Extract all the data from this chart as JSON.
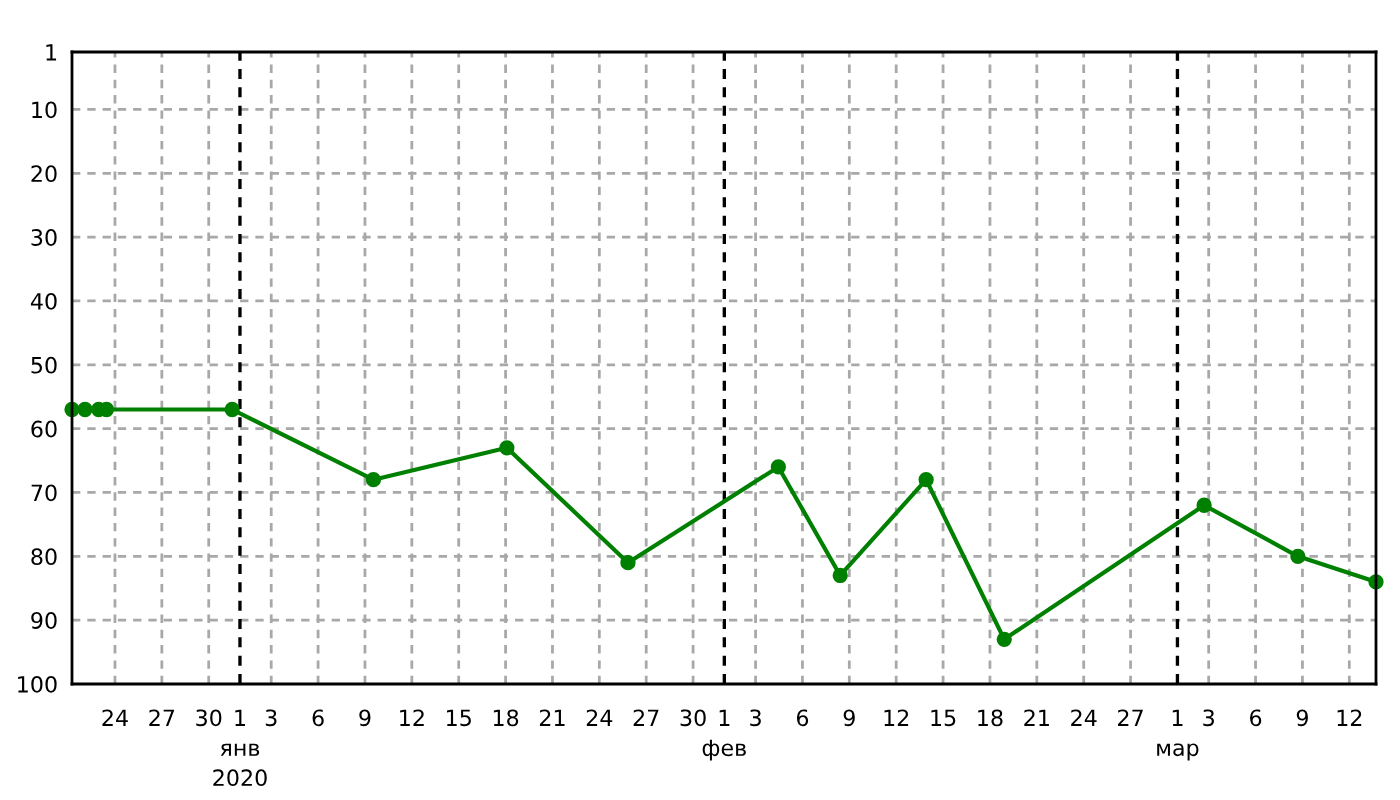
{
  "chart_data": {
    "type": "line",
    "x": [
      "2019-12-21T06:00",
      "2019-12-22T02:00",
      "2019-12-22T23:00",
      "2019-12-23T11:00",
      "2019-12-31T12:00",
      "2020-01-09T13:00",
      "2020-01-18T02:00",
      "2020-01-25T20:00",
      "2020-02-04T11:00",
      "2020-02-08T10:00",
      "2020-02-13T22:00",
      "2020-02-18T22:00",
      "2020-03-02T17:00",
      "2020-03-08T17:00",
      "2020-03-13T17:00"
    ],
    "series": [
      {
        "color": "#008000",
        "values": [
          57,
          57,
          57,
          57,
          57,
          68,
          63,
          81,
          66,
          83,
          68,
          93,
          72,
          80,
          84
        ]
      }
    ],
    "xlim": [
      "2019-12-21T06:00",
      "2020-03-13T17:00"
    ],
    "xticks": [
      {
        "value": "2019-12-24",
        "label": "24"
      },
      {
        "value": "2019-12-27",
        "label": "27"
      },
      {
        "value": "2019-12-30",
        "label": "30"
      },
      {
        "value": "2020-01-03",
        "label": "3"
      },
      {
        "value": "2020-01-06",
        "label": "6"
      },
      {
        "value": "2020-01-09",
        "label": "9"
      },
      {
        "value": "2020-01-12",
        "label": "12"
      },
      {
        "value": "2020-01-15",
        "label": "15"
      },
      {
        "value": "2020-01-18",
        "label": "18"
      },
      {
        "value": "2020-01-21",
        "label": "21"
      },
      {
        "value": "2020-01-24",
        "label": "24"
      },
      {
        "value": "2020-01-27",
        "label": "27"
      },
      {
        "value": "2020-01-30",
        "label": "30"
      },
      {
        "value": "2020-02-03",
        "label": "3"
      },
      {
        "value": "2020-02-06",
        "label": "6"
      },
      {
        "value": "2020-02-09",
        "label": "9"
      },
      {
        "value": "2020-02-12",
        "label": "12"
      },
      {
        "value": "2020-02-15",
        "label": "15"
      },
      {
        "value": "2020-02-18",
        "label": "18"
      },
      {
        "value": "2020-02-21",
        "label": "21"
      },
      {
        "value": "2020-02-24",
        "label": "24"
      },
      {
        "value": "2020-02-27",
        "label": "27"
      },
      {
        "value": "2020-03-03",
        "label": "3"
      },
      {
        "value": "2020-03-06",
        "label": "6"
      },
      {
        "value": "2020-03-09",
        "label": "9"
      },
      {
        "value": "2020-03-12",
        "label": "12"
      }
    ],
    "ylim": [
      100,
      1
    ],
    "yticks": [
      1,
      10,
      20,
      30,
      40,
      50,
      60,
      70,
      80,
      90,
      100
    ],
    "ref_lines": [
      {
        "axis": "x",
        "value": "2020-01-01",
        "label": "1\nянв\n2020",
        "color": "#000000",
        "line_style": "dashed"
      },
      {
        "axis": "x",
        "value": "2020-02-01",
        "label": "1\nфев",
        "color": "#000000",
        "line_style": "dashed"
      },
      {
        "axis": "x",
        "value": "2020-03-01",
        "label": "1\nмар",
        "color": "#000000",
        "line_style": "dashed"
      }
    ],
    "grid": true,
    "marker": "circle",
    "line_style": "solid"
  }
}
